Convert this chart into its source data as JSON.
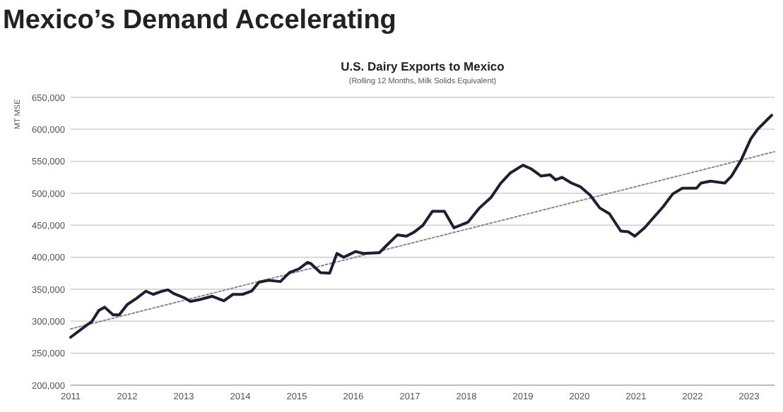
{
  "chart_data": {
    "type": "line",
    "title": "Mexico’s Demand Accelerating",
    "subtitle": "U.S. Dairy Exports to Mexico",
    "annotations": [
      "(Rolling 12 Months, Milk Solids Equivalent)"
    ],
    "ylabel": "MT MSE",
    "xlim": [
      2011,
      2023.45
    ],
    "xticks": [
      2011,
      2012,
      2013,
      2014,
      2015,
      2016,
      2017,
      2018,
      2019,
      2020,
      2021,
      2022,
      2023
    ],
    "ylim": [
      200000,
      650000
    ],
    "yticks": [
      {
        "value": 200000,
        "label": "200,000"
      },
      {
        "value": 250000,
        "label": "250,000"
      },
      {
        "value": 300000,
        "label": "300,000"
      },
      {
        "value": 350000,
        "label": "350,000"
      },
      {
        "value": 400000,
        "label": "400,000"
      },
      {
        "value": 450000,
        "label": "450,000"
      },
      {
        "value": 500000,
        "label": "500,000"
      },
      {
        "value": 550000,
        "label": "550,000"
      },
      {
        "value": 600000,
        "label": "600,000"
      },
      {
        "value": 650000,
        "label": "650,000"
      }
    ],
    "grid": "y",
    "marker": "none",
    "series": [
      {
        "color": "#1b2033",
        "line_style": "solid",
        "x": [
          2011.0,
          2011.3,
          2011.37,
          2011.5,
          2011.6,
          2011.75,
          2011.86,
          2012.0,
          2012.17,
          2012.33,
          2012.46,
          2012.62,
          2012.72,
          2012.83,
          2013.0,
          2013.12,
          2013.29,
          2013.5,
          2013.71,
          2013.87,
          2014.04,
          2014.2,
          2014.33,
          2014.5,
          2014.71,
          2014.87,
          2015.04,
          2015.19,
          2015.25,
          2015.42,
          2015.58,
          2015.71,
          2015.83,
          2016.04,
          2016.17,
          2016.46,
          2016.57,
          2016.78,
          2016.94,
          2017.07,
          2017.23,
          2017.4,
          2017.61,
          2017.78,
          2018.03,
          2018.23,
          2018.44,
          2018.61,
          2018.78,
          2019.0,
          2019.15,
          2019.32,
          2019.48,
          2019.58,
          2019.69,
          2019.86,
          2020.02,
          2020.19,
          2020.36,
          2020.53,
          2020.73,
          2020.86,
          2020.98,
          2021.15,
          2021.48,
          2021.65,
          2021.82,
          2022.07,
          2022.15,
          2022.32,
          2022.57,
          2022.69,
          2022.86,
          2023.03,
          2023.15,
          2023.32,
          2023.4
        ],
        "values": [
          275000,
          295000,
          299000,
          317000,
          322000,
          310000,
          310000,
          326000,
          336000,
          347000,
          342000,
          347000,
          349000,
          343000,
          337000,
          331000,
          334000,
          339000,
          332000,
          342000,
          342000,
          347000,
          361000,
          364000,
          362000,
          376000,
          382000,
          392000,
          390000,
          376000,
          375000,
          406000,
          400000,
          409000,
          406000,
          407000,
          417000,
          435000,
          433000,
          439000,
          450000,
          472000,
          472000,
          446000,
          455000,
          477000,
          494000,
          516000,
          532000,
          544000,
          538000,
          527000,
          529000,
          521000,
          525000,
          516000,
          510000,
          497000,
          477000,
          468000,
          441000,
          440000,
          433000,
          446000,
          479000,
          499000,
          508000,
          508000,
          516000,
          519000,
          516000,
          527000,
          552000,
          585000,
          600000,
          615000,
          622000
        ]
      },
      {
        "type": "line",
        "color": "#8a8a8a",
        "line_style": "dotted",
        "x": [
          2011,
          2023.45
        ],
        "values": [
          288000,
          565000
        ]
      }
    ]
  }
}
